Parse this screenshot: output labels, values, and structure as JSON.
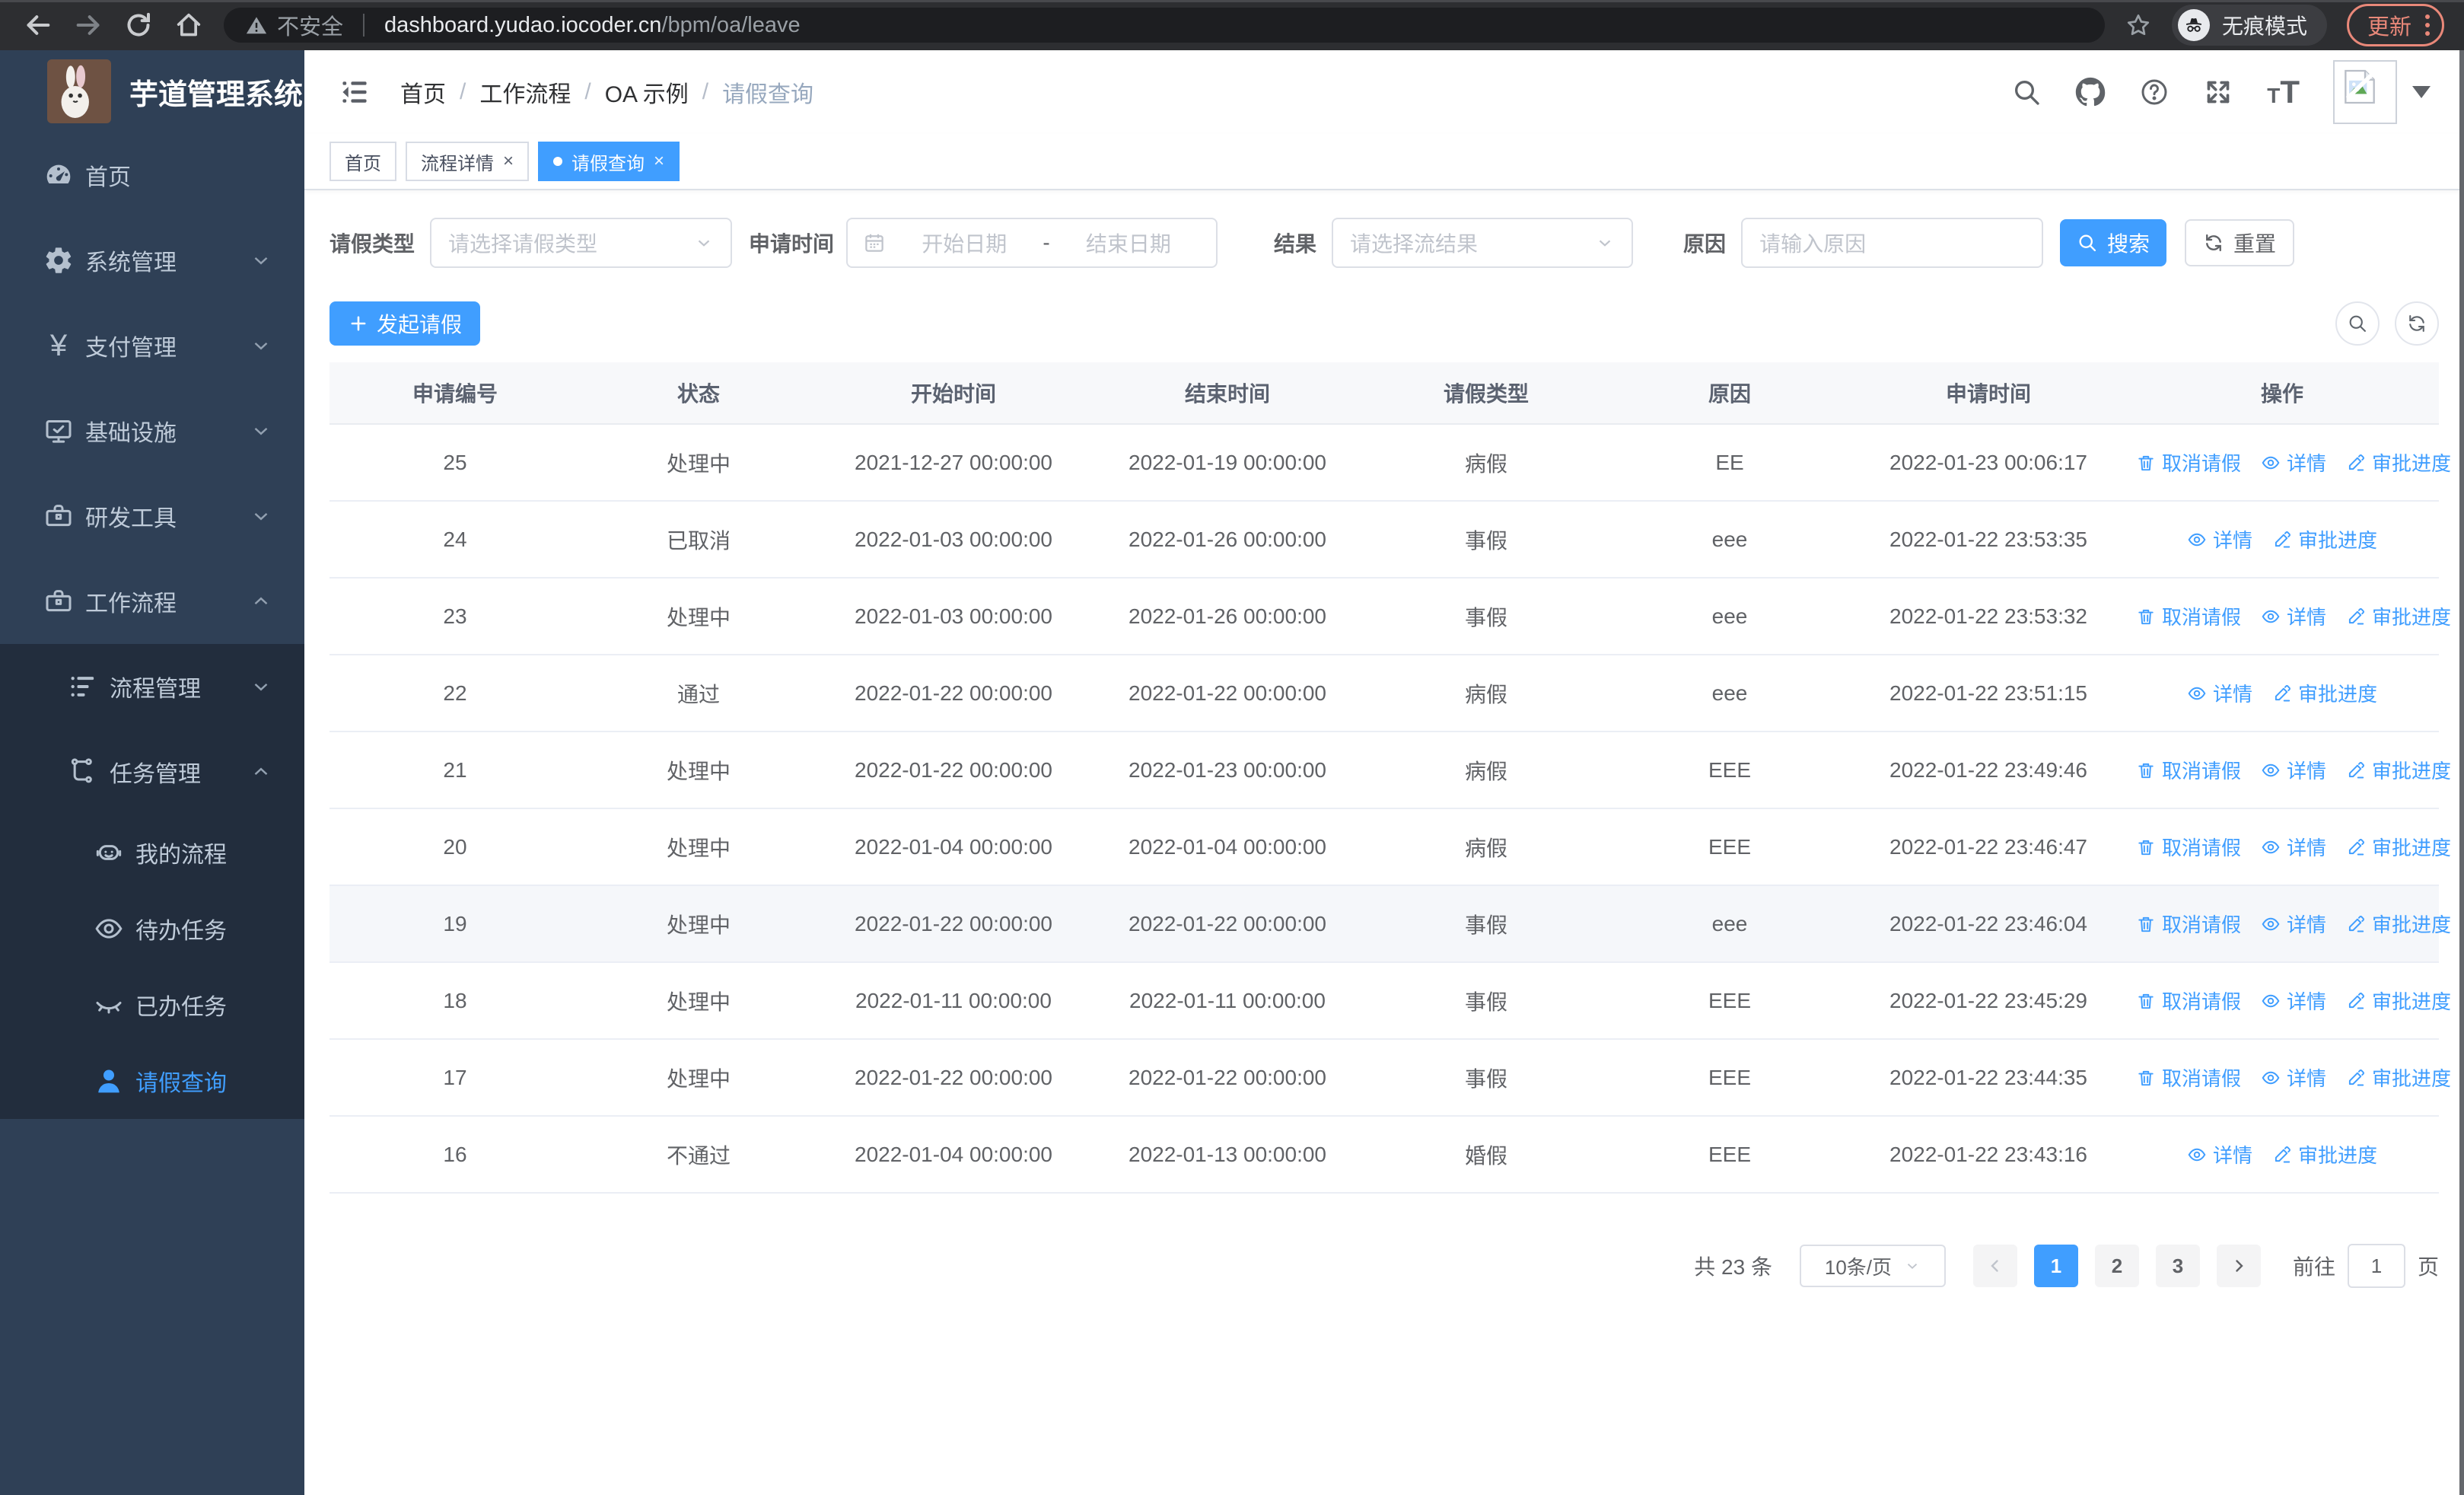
{
  "browser": {
    "security_label": "不安全",
    "url_host": "dashboard.yudao.iocoder.cn",
    "url_path": "/bpm/oa/leave",
    "incognito_label": "无痕模式",
    "update_label": "更新"
  },
  "sidebar": {
    "title": "芋道管理系统",
    "main_items": [
      {
        "id": "home",
        "icon": "dashboard-icon",
        "label": "首页",
        "chevron": "",
        "level": 0,
        "active": false
      },
      {
        "id": "system-mgmt",
        "icon": "gear-icon",
        "label": "系统管理",
        "chevron": "down",
        "level": 0,
        "active": false
      },
      {
        "id": "pay-mgmt",
        "icon": "yen-icon",
        "label": "支付管理",
        "chevron": "down",
        "level": 0,
        "active": false
      },
      {
        "id": "infrastructure",
        "icon": "monitor-icon",
        "label": "基础设施",
        "chevron": "down",
        "level": 0,
        "active": false
      },
      {
        "id": "dev-tools",
        "icon": "toolbox-icon",
        "label": "研发工具",
        "chevron": "down",
        "level": 0,
        "active": false
      },
      {
        "id": "workflow",
        "icon": "briefcase-icon",
        "label": "工作流程",
        "chevron": "up",
        "level": 0,
        "active": false
      }
    ],
    "sub_items": [
      {
        "id": "process-mgmt",
        "icon": "list-icon",
        "label": "流程管理",
        "chevron": "down",
        "level": 1,
        "active": false
      },
      {
        "id": "task-mgmt",
        "icon": "flow-icon",
        "label": "任务管理",
        "chevron": "up",
        "level": 1,
        "active": false
      },
      {
        "id": "my-process",
        "icon": "robot-icon",
        "label": "我的流程",
        "chevron": "",
        "level": 2,
        "active": false
      },
      {
        "id": "todo-tasks",
        "icon": "eye-icon",
        "label": "待办任务",
        "chevron": "",
        "level": 2,
        "active": false
      },
      {
        "id": "done-tasks",
        "icon": "eye-closed-icon",
        "label": "已办任务",
        "chevron": "",
        "level": 2,
        "active": false
      },
      {
        "id": "leave-query",
        "icon": "user-icon",
        "label": "请假查询",
        "chevron": "",
        "level": 2,
        "active": true
      }
    ]
  },
  "header": {
    "breadcrumb": [
      "首页",
      "工作流程",
      "OA 示例",
      "请假查询"
    ],
    "separator": "/"
  },
  "tabs": [
    {
      "id": "home",
      "label": "首页",
      "closable": false,
      "active": false
    },
    {
      "id": "process-detail",
      "label": "流程详情",
      "closable": true,
      "active": false
    },
    {
      "id": "leave-query",
      "label": "请假查询",
      "closable": true,
      "active": true
    }
  ],
  "ui": {
    "close_glyph": "×"
  },
  "filters": {
    "type_label": "请假类型",
    "type_placeholder": "请选择请假类型",
    "time_label": "申请时间",
    "start_placeholder": "开始日期",
    "range_separator": "-",
    "end_placeholder": "结束日期",
    "result_label": "结果",
    "result_placeholder": "请选择流结果",
    "reason_label": "原因",
    "reason_placeholder": "请输入原因",
    "search_label": "搜索",
    "reset_label": "重置"
  },
  "toolbar": {
    "create_label": "发起请假"
  },
  "table": {
    "columns": [
      "申请编号",
      "状态",
      "开始时间",
      "结束时间",
      "请假类型",
      "原因",
      "申请时间",
      "操作"
    ],
    "ops": {
      "cancel": "取消请假",
      "detail": "详情",
      "progress": "审批进度"
    },
    "rows": [
      {
        "id": "25",
        "status": "处理中",
        "start": "2021-12-27 00:00:00",
        "end": "2022-01-19 00:00:00",
        "type": "病假",
        "reason": "EE",
        "applied": "2022-01-23 00:06:17",
        "can_cancel": true,
        "highlighted": false
      },
      {
        "id": "24",
        "status": "已取消",
        "start": "2022-01-03 00:00:00",
        "end": "2022-01-26 00:00:00",
        "type": "事假",
        "reason": "eee",
        "applied": "2022-01-22 23:53:35",
        "can_cancel": false,
        "highlighted": false
      },
      {
        "id": "23",
        "status": "处理中",
        "start": "2022-01-03 00:00:00",
        "end": "2022-01-26 00:00:00",
        "type": "事假",
        "reason": "eee",
        "applied": "2022-01-22 23:53:32",
        "can_cancel": true,
        "highlighted": false
      },
      {
        "id": "22",
        "status": "通过",
        "start": "2022-01-22 00:00:00",
        "end": "2022-01-22 00:00:00",
        "type": "病假",
        "reason": "eee",
        "applied": "2022-01-22 23:51:15",
        "can_cancel": false,
        "highlighted": false
      },
      {
        "id": "21",
        "status": "处理中",
        "start": "2022-01-22 00:00:00",
        "end": "2022-01-23 00:00:00",
        "type": "病假",
        "reason": "EEE",
        "applied": "2022-01-22 23:49:46",
        "can_cancel": true,
        "highlighted": false
      },
      {
        "id": "20",
        "status": "处理中",
        "start": "2022-01-04 00:00:00",
        "end": "2022-01-04 00:00:00",
        "type": "病假",
        "reason": "EEE",
        "applied": "2022-01-22 23:46:47",
        "can_cancel": true,
        "highlighted": false
      },
      {
        "id": "19",
        "status": "处理中",
        "start": "2022-01-22 00:00:00",
        "end": "2022-01-22 00:00:00",
        "type": "事假",
        "reason": "eee",
        "applied": "2022-01-22 23:46:04",
        "can_cancel": true,
        "highlighted": true
      },
      {
        "id": "18",
        "status": "处理中",
        "start": "2022-01-11 00:00:00",
        "end": "2022-01-11 00:00:00",
        "type": "事假",
        "reason": "EEE",
        "applied": "2022-01-22 23:45:29",
        "can_cancel": true,
        "highlighted": false
      },
      {
        "id": "17",
        "status": "处理中",
        "start": "2022-01-22 00:00:00",
        "end": "2022-01-22 00:00:00",
        "type": "事假",
        "reason": "EEE",
        "applied": "2022-01-22 23:44:35",
        "can_cancel": true,
        "highlighted": false
      },
      {
        "id": "16",
        "status": "不通过",
        "start": "2022-01-04 00:00:00",
        "end": "2022-01-13 00:00:00",
        "type": "婚假",
        "reason": "EEE",
        "applied": "2022-01-22 23:43:16",
        "can_cancel": false,
        "highlighted": false
      }
    ]
  },
  "pagination": {
    "total": "共 23 条",
    "page_size": "10条/页",
    "pages": [
      "1",
      "2",
      "3"
    ],
    "active_page": "1",
    "goto_label": "前往",
    "goto_value": "1",
    "page_unit": "页"
  },
  "colors": {
    "accent": "#409eff",
    "sidebar_bg": "#2f4056",
    "submenu_bg": "#222d3d",
    "update_accent": "#e98879"
  }
}
